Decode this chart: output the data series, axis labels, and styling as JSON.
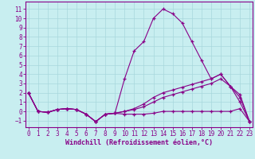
{
  "background_color": "#c8eef0",
  "grid_color": "#a8d8dc",
  "line_color": "#880088",
  "xlabel": "Windchill (Refroidissement éolien,°C)",
  "xlabel_fontsize": 6,
  "tick_fontsize": 5.5,
  "ylim": [
    -1.7,
    11.8
  ],
  "xlim": [
    -0.3,
    23.3
  ],
  "yticks": [
    -1,
    0,
    1,
    2,
    3,
    4,
    5,
    6,
    7,
    8,
    9,
    10,
    11
  ],
  "xticks": [
    0,
    1,
    2,
    3,
    4,
    5,
    6,
    7,
    8,
    9,
    10,
    11,
    12,
    13,
    14,
    15,
    16,
    17,
    18,
    19,
    20,
    21,
    22,
    23
  ],
  "series1": [
    2.0,
    0.0,
    -0.1,
    0.2,
    0.3,
    0.2,
    -0.3,
    -1.1,
    -0.3,
    -0.2,
    3.5,
    6.5,
    7.5,
    10.0,
    11.0,
    10.5,
    9.5,
    7.5,
    5.5,
    3.5,
    4.0,
    2.7,
    1.0,
    -1.1
  ],
  "series2": [
    2.0,
    0.0,
    -0.1,
    0.2,
    0.3,
    0.2,
    -0.3,
    -1.1,
    -0.3,
    -0.2,
    0.0,
    0.3,
    0.8,
    1.5,
    2.0,
    2.3,
    2.6,
    2.9,
    3.2,
    3.5,
    4.0,
    2.7,
    1.8,
    -1.1
  ],
  "series3": [
    2.0,
    0.0,
    -0.1,
    0.2,
    0.3,
    0.2,
    -0.3,
    -1.1,
    -0.3,
    -0.2,
    0.0,
    0.2,
    0.5,
    1.0,
    1.5,
    1.8,
    2.1,
    2.4,
    2.7,
    3.0,
    3.5,
    2.7,
    1.5,
    -1.1
  ],
  "series4": [
    2.0,
    0.0,
    -0.1,
    0.2,
    0.3,
    0.2,
    -0.3,
    -1.1,
    -0.3,
    -0.2,
    -0.3,
    -0.3,
    -0.3,
    -0.2,
    0.0,
    0.0,
    0.0,
    0.0,
    0.0,
    0.0,
    0.0,
    0.0,
    0.3,
    -1.1
  ]
}
